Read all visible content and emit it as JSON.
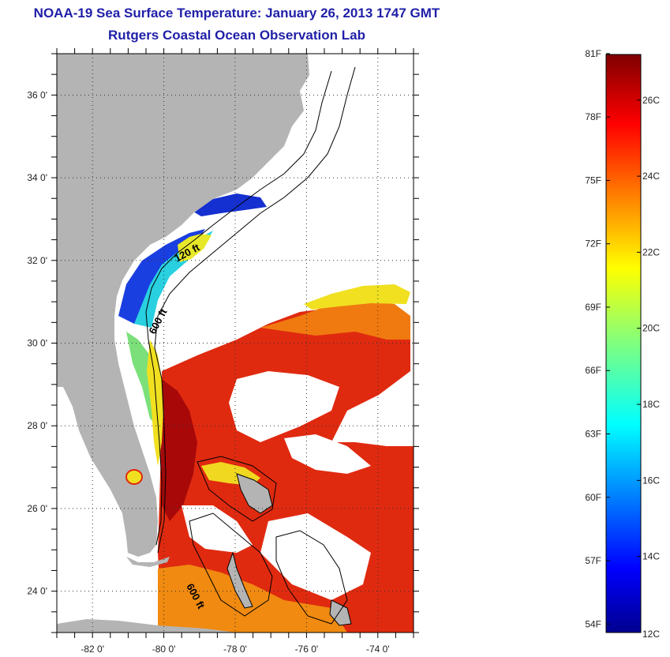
{
  "header": {
    "title": "NOAA-19 Sea Surface Temperature:  January 26, 2013 1747 GMT",
    "subtitle": "Rutgers Coastal Ocean Observation Lab"
  },
  "map": {
    "lon_range": [
      -83,
      -73
    ],
    "lat_range": [
      23,
      37
    ],
    "lon_ticks": [
      {
        "value": -82,
        "label": "-82 0'"
      },
      {
        "value": -80,
        "label": "-80 0'"
      },
      {
        "value": -78,
        "label": "-78 0'"
      },
      {
        "value": -76,
        "label": "-76 0'"
      },
      {
        "value": -74,
        "label": "-74 0'"
      }
    ],
    "lat_ticks": [
      {
        "value": 24,
        "label": "24 0'"
      },
      {
        "value": 26,
        "label": "26 0'"
      },
      {
        "value": 28,
        "label": "28 0'"
      },
      {
        "value": 30,
        "label": "30 0'"
      },
      {
        "value": 32,
        "label": "32 0'"
      },
      {
        "value": 34,
        "label": "34 0'"
      },
      {
        "value": 36,
        "label": "36 0'"
      }
    ],
    "contour_labels": [
      "120 ft",
      "600 ft",
      "600 ft"
    ],
    "colors": {
      "land": "#b4b4b4",
      "cloud": "#ffffff",
      "warm": "#dd2211",
      "hot": "#aa0000",
      "cool": "#1a3fe0"
    }
  },
  "colorbar": {
    "min_c": 12,
    "max_c": 27.2,
    "fahrenheit_labels": [
      "81F",
      "78F",
      "75F",
      "72F",
      "69F",
      "66F",
      "63F",
      "60F",
      "57F",
      "54F"
    ],
    "celsius_labels": [
      "26C",
      "24C",
      "22C",
      "20C",
      "18C",
      "16C",
      "14C",
      "12C"
    ]
  }
}
